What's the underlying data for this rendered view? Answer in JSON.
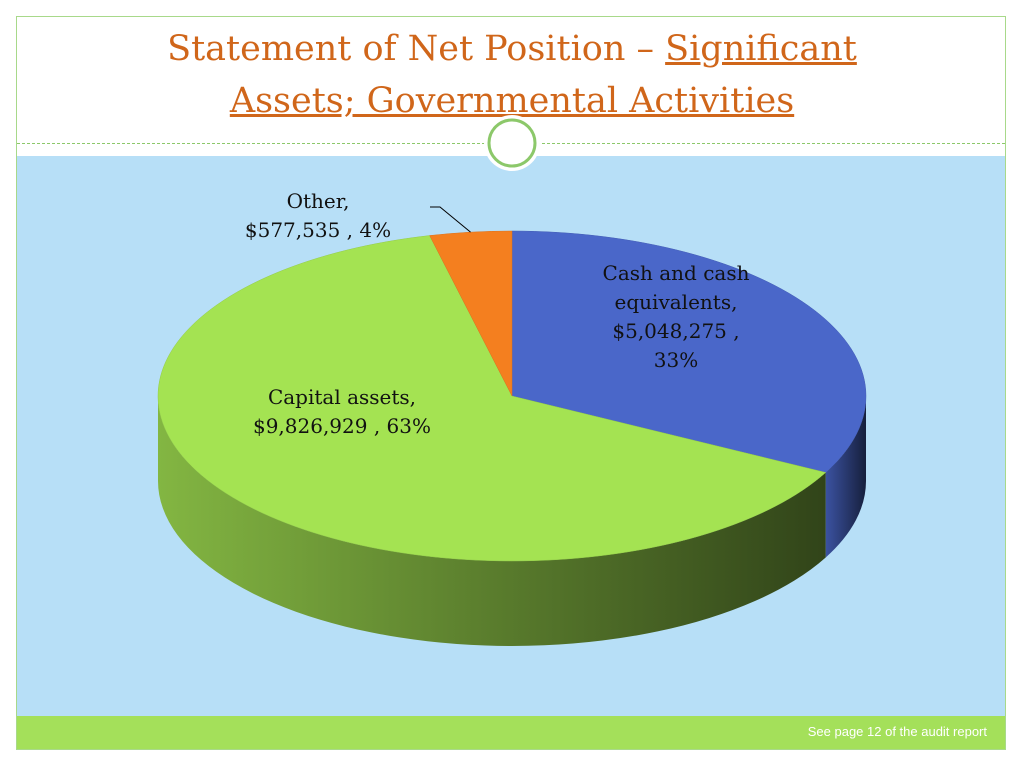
{
  "slide": {
    "title_line1_plain": "Statement of Net Position – ",
    "title_line1_link": "Significant",
    "title_line2_link": "Assets; Governmental Activities",
    "footer_note": "See page 12 of the audit report"
  },
  "colors": {
    "title": "#d0661a",
    "chart_background": "#b7dff7",
    "footer_bar": "#a4e05a",
    "accent_border": "#8cc86a"
  },
  "chart_data": {
    "type": "pie",
    "style": "3d",
    "slices": [
      {
        "label": "Cash and cash equivalents",
        "value": 5048275,
        "value_text": "$5,048,275",
        "percent": 33,
        "color": "#4a67c9",
        "label_lines": [
          "Cash and cash",
          "equivalents,",
          "$5,048,275 ,",
          "33%"
        ]
      },
      {
        "label": "Capital assets",
        "value": 9826929,
        "value_text": "$9,826,929",
        "percent": 63,
        "color": "#a4e352",
        "label_lines": [
          "Capital assets,",
          "$9,826,929 , 63%"
        ]
      },
      {
        "label": "Other",
        "value": 577535,
        "value_text": "$577,535",
        "percent": 4,
        "color": "#f47f1f",
        "label_lines": [
          "Other,",
          "$577,535 , 4%"
        ]
      }
    ]
  }
}
